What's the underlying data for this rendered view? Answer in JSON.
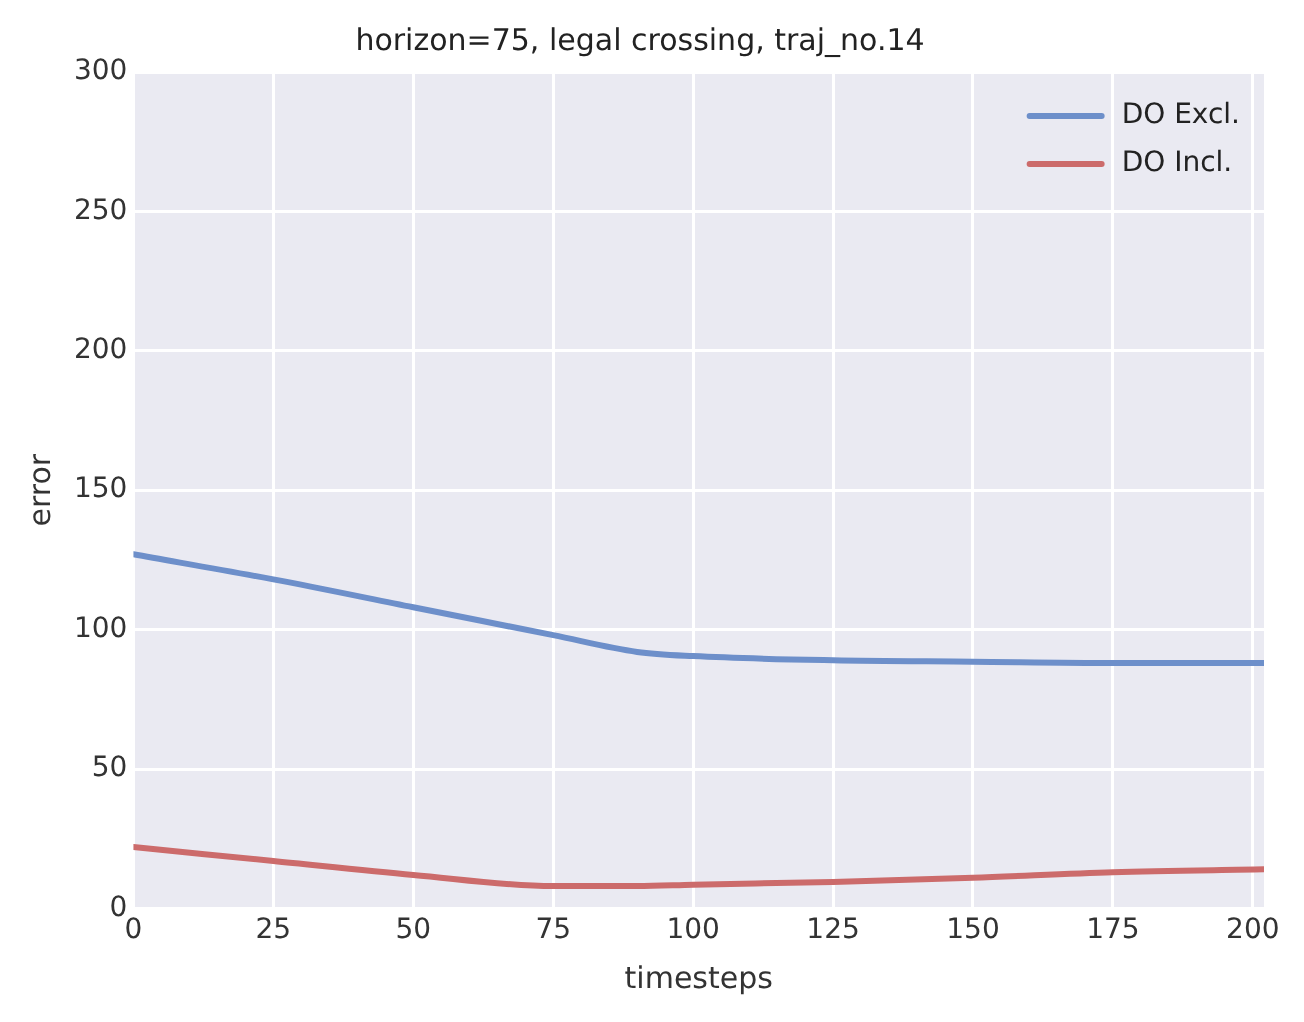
{
  "chart_data": {
    "type": "line",
    "title": "horizon=75, legal crossing, traj_no.14",
    "xlabel": "timesteps",
    "ylabel": "error",
    "series": [
      {
        "name": "DO Excl.",
        "color": "#6d8fca",
        "x": [
          0,
          25,
          50,
          75,
          90,
          100,
          125,
          150,
          175,
          202
        ],
        "values": [
          127,
          118,
          108,
          98,
          92,
          90.5,
          89,
          88.5,
          88,
          88
        ]
      },
      {
        "name": "DO Incl.",
        "color": "#cc6b6b",
        "x": [
          0,
          25,
          50,
          75,
          90,
          100,
          125,
          150,
          175,
          202
        ],
        "values": [
          22,
          17,
          12,
          8,
          8,
          8.5,
          9.5,
          11,
          13,
          14
        ]
      }
    ],
    "xlim": [
      0,
      202
    ],
    "xticks": [
      0,
      25,
      50,
      75,
      100,
      125,
      150,
      175,
      200
    ],
    "ylim": [
      0,
      300
    ],
    "yticks": [
      0,
      50,
      100,
      150,
      200,
      250,
      300
    ],
    "grid": true,
    "legend": "top right",
    "marker": "none",
    "line_style": "solid"
  }
}
